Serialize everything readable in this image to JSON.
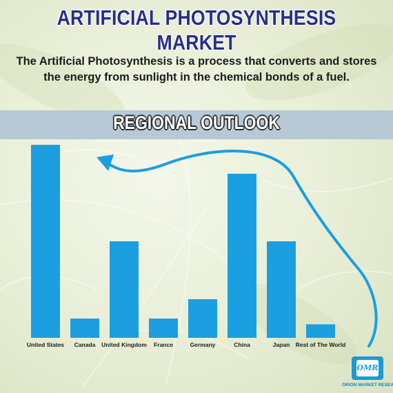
{
  "header": {
    "title": "ARTIFICIAL PHOTOSYNTHESIS MARKET",
    "subtitle_line1": "The Artificial Photosynthesis is a process that converts and stores",
    "subtitle_line2": "the energy from sunlight in the chemical bonds of a fuel."
  },
  "section": {
    "label": "REGIONAL OUTLOOK"
  },
  "colors": {
    "bar": "#1b9fe0",
    "title": "#2a2e88",
    "band": "#b7c8d6"
  },
  "chart_data": {
    "type": "bar",
    "title": "REGIONAL OUTLOOK",
    "categories": [
      "United States",
      "Canada",
      "United Kingdom",
      "France",
      "Germany",
      "China",
      "Japan",
      "Rest of The World"
    ],
    "values": [
      100,
      10,
      50,
      10,
      20,
      85,
      50,
      7
    ],
    "ylim": [
      0,
      100
    ],
    "grid": false,
    "legend": "none",
    "annotations": [
      "curved arrow from the right side pointing left toward United States"
    ]
  },
  "logo": {
    "mark": "OMR",
    "caption": "ORION MARKET RESEARCH"
  }
}
